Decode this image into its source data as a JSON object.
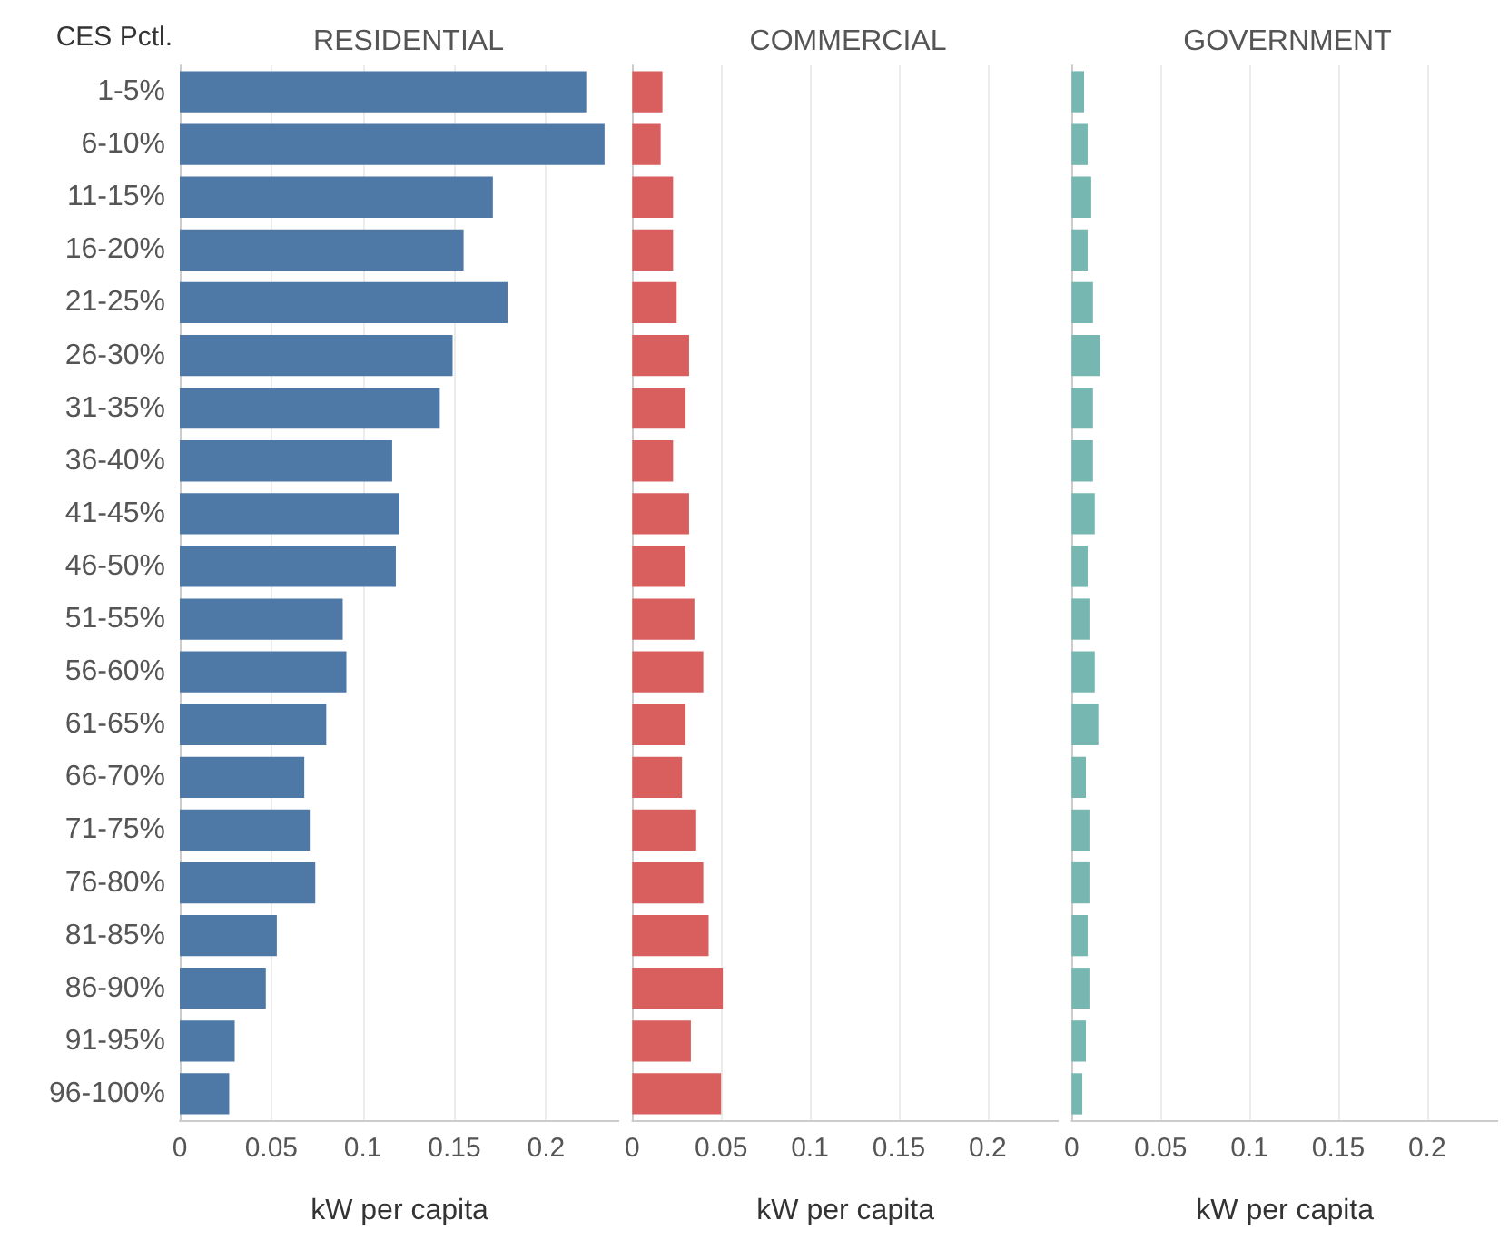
{
  "chart_data": [
    {
      "type": "bar",
      "orientation": "horizontal",
      "title": "RESIDENTIAL",
      "ylabel": "CES Pctl.",
      "xlabel": "kW per capita",
      "categories": [
        "1-5%",
        "6-10%",
        "11-15%",
        "16-20%",
        "21-25%",
        "26-30%",
        "31-35%",
        "36-40%",
        "41-45%",
        "46-50%",
        "51-55%",
        "56-60%",
        "61-65%",
        "66-70%",
        "71-75%",
        "76-80%",
        "81-85%",
        "86-90%",
        "91-95%",
        "96-100%"
      ],
      "values": [
        0.222,
        0.232,
        0.171,
        0.155,
        0.179,
        0.149,
        0.142,
        0.116,
        0.12,
        0.118,
        0.089,
        0.091,
        0.08,
        0.068,
        0.071,
        0.074,
        0.053,
        0.047,
        0.03,
        0.027
      ],
      "color": "#4e79a7",
      "xlim": [
        0,
        0.24
      ],
      "xticks": [
        0,
        0.05,
        0.1,
        0.15,
        0.2
      ],
      "grid": "x"
    },
    {
      "type": "bar",
      "orientation": "horizontal",
      "title": "COMMERCIAL",
      "xlabel": "kW per capita",
      "tick_labels": "x",
      "categories": [
        null,
        null,
        null,
        null,
        null,
        null,
        null,
        null,
        null,
        null,
        null,
        null,
        null,
        null,
        null,
        null,
        null,
        null,
        null,
        null
      ],
      "values": [
        0.017,
        0.016,
        0.023,
        0.023,
        0.025,
        0.032,
        0.03,
        0.023,
        0.032,
        0.03,
        0.035,
        0.04,
        0.03,
        0.028,
        0.036,
        0.04,
        0.043,
        0.051,
        0.033,
        0.05
      ],
      "color": "#d95f5f",
      "xlim": [
        0,
        0.24
      ],
      "xticks": [
        0,
        0.05,
        0.1,
        0.15,
        0.2
      ],
      "grid": "x"
    },
    {
      "type": "bar",
      "orientation": "horizontal",
      "title": "GOVERNMENT",
      "xlabel": "kW per capita",
      "tick_labels": "x",
      "categories": [
        null,
        null,
        null,
        null,
        null,
        null,
        null,
        null,
        null,
        null,
        null,
        null,
        null,
        null,
        null,
        null,
        null,
        null,
        null,
        null
      ],
      "values": [
        0.007,
        0.009,
        0.011,
        0.009,
        0.012,
        0.016,
        0.012,
        0.012,
        0.013,
        0.009,
        0.01,
        0.013,
        0.015,
        0.008,
        0.01,
        0.01,
        0.009,
        0.01,
        0.008,
        0.006
      ],
      "color": "#76b7b2",
      "xlim": [
        0,
        0.24
      ],
      "xticks": [
        0,
        0.05,
        0.1,
        0.15,
        0.2
      ],
      "grid": "x"
    }
  ]
}
